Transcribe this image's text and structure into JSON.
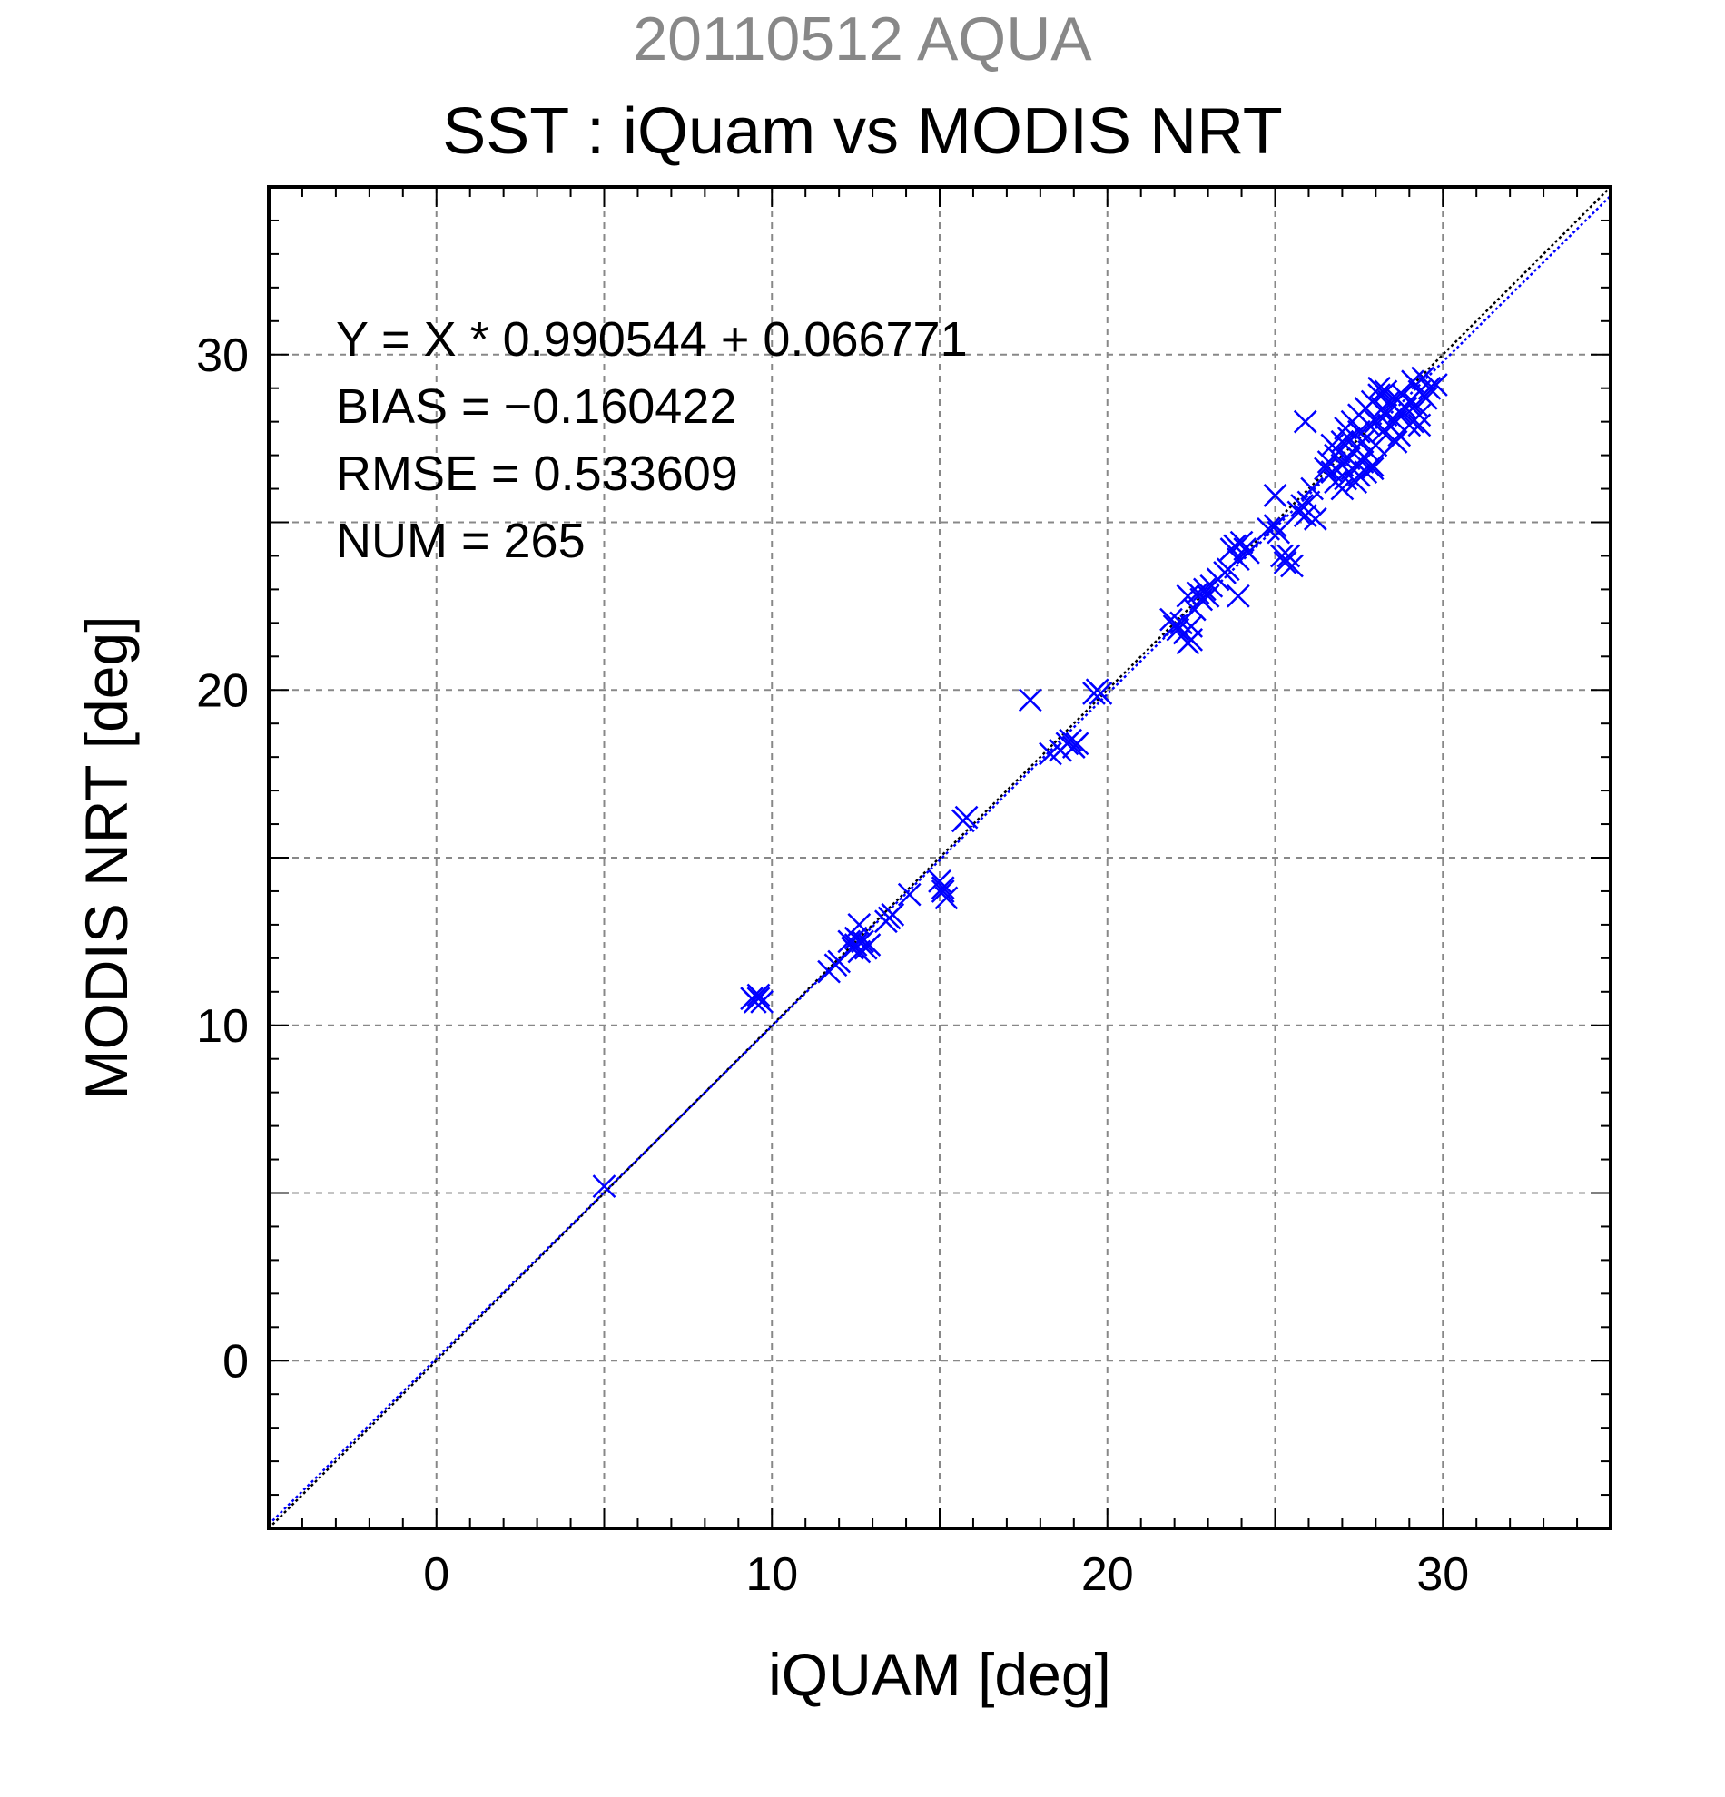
{
  "chart_data": {
    "type": "scatter",
    "title": "SST : iQuam vs MODIS NRT",
    "subtitle": "20110512 AQUA",
    "xlabel": "iQUAM [deg]",
    "ylabel": "MODIS NRT [deg]",
    "xlim": [
      -5,
      35
    ],
    "ylim": [
      -5,
      35
    ],
    "xticks": [
      0,
      10,
      20,
      30
    ],
    "yticks": [
      0,
      10,
      20,
      30
    ],
    "grid": true,
    "marker": "x",
    "colors": {
      "points": "#0000ff",
      "fit_line": "#0000ff",
      "identity_line": "#000000",
      "grid": "#888888"
    },
    "annotations": [
      "Y = X * 0.990544 + 0.066771",
      "BIAS = −0.160422",
      "RMSE = 0.533609",
      "NUM = 265"
    ],
    "lines": [
      {
        "type": "identity",
        "slope": 1,
        "intercept": 0
      },
      {
        "type": "fit",
        "slope": 0.990544,
        "intercept": 0.066771
      }
    ],
    "series": [
      {
        "points": [
          [
            5.0,
            5.2
          ],
          [
            9.4,
            10.8
          ],
          [
            9.5,
            10.7
          ],
          [
            9.6,
            10.9
          ],
          [
            9.7,
            10.7
          ],
          [
            9.6,
            10.8
          ],
          [
            11.7,
            11.6
          ],
          [
            11.9,
            11.8
          ],
          [
            12.0,
            11.9
          ],
          [
            12.3,
            12.5
          ],
          [
            12.4,
            12.3
          ],
          [
            12.5,
            12.4
          ],
          [
            12.6,
            12.2
          ],
          [
            12.7,
            12.5
          ],
          [
            12.8,
            12.3
          ],
          [
            12.6,
            13.0
          ],
          [
            12.5,
            12.6
          ],
          [
            12.9,
            12.4
          ],
          [
            13.4,
            13.1
          ],
          [
            13.5,
            13.2
          ],
          [
            13.6,
            13.3
          ],
          [
            14.1,
            13.9
          ],
          [
            15.0,
            14.3
          ],
          [
            15.1,
            14.0
          ],
          [
            15.2,
            13.8
          ],
          [
            15.1,
            14.1
          ],
          [
            15.7,
            16.1
          ],
          [
            15.8,
            16.2
          ],
          [
            17.7,
            19.7
          ],
          [
            18.3,
            18.1
          ],
          [
            18.6,
            18.2
          ],
          [
            18.8,
            18.4
          ],
          [
            18.9,
            18.5
          ],
          [
            19.0,
            18.3
          ],
          [
            19.1,
            18.4
          ],
          [
            19.6,
            19.9
          ],
          [
            19.7,
            20.0
          ],
          [
            19.8,
            19.9
          ],
          [
            21.9,
            22.1
          ],
          [
            22.0,
            21.9
          ],
          [
            22.1,
            21.8
          ],
          [
            22.2,
            22.0
          ],
          [
            22.3,
            21.7
          ],
          [
            22.4,
            21.4
          ],
          [
            22.5,
            21.5
          ],
          [
            22.4,
            22.8
          ],
          [
            22.6,
            22.4
          ],
          [
            22.7,
            22.9
          ],
          [
            22.8,
            22.7
          ],
          [
            22.9,
            23.0
          ],
          [
            23.0,
            22.8
          ],
          [
            23.1,
            23.1
          ],
          [
            22.5,
            21.9
          ],
          [
            23.3,
            23.3
          ],
          [
            23.5,
            23.5
          ],
          [
            23.6,
            23.6
          ],
          [
            23.7,
            24.2
          ],
          [
            23.8,
            24.3
          ],
          [
            23.9,
            23.9
          ],
          [
            24.0,
            24.4
          ],
          [
            24.1,
            24.2
          ],
          [
            24.2,
            24.1
          ],
          [
            23.9,
            22.8
          ],
          [
            24.8,
            24.8
          ],
          [
            25.0,
            24.9
          ],
          [
            25.1,
            24.7
          ],
          [
            25.0,
            25.8
          ],
          [
            25.2,
            24.0
          ],
          [
            25.3,
            23.8
          ],
          [
            25.4,
            24.0
          ],
          [
            25.5,
            23.7
          ],
          [
            25.7,
            25.3
          ],
          [
            25.8,
            25.5
          ],
          [
            25.9,
            25.2
          ],
          [
            26.0,
            25.6
          ],
          [
            26.1,
            26.0
          ],
          [
            26.2,
            25.1
          ],
          [
            25.9,
            28.0
          ],
          [
            26.5,
            26.6
          ],
          [
            26.6,
            26.8
          ],
          [
            26.7,
            26.5
          ],
          [
            26.8,
            26.2
          ],
          [
            26.9,
            27.1
          ],
          [
            26.7,
            27.3
          ],
          [
            26.8,
            27.0
          ],
          [
            27.0,
            26.7
          ],
          [
            27.0,
            27.4
          ],
          [
            27.1,
            26.3
          ],
          [
            27.1,
            27.8
          ],
          [
            27.2,
            26.9
          ],
          [
            27.2,
            27.5
          ],
          [
            27.3,
            26.6
          ],
          [
            27.3,
            28.0
          ],
          [
            27.4,
            27.2
          ],
          [
            27.4,
            26.2
          ],
          [
            27.5,
            27.7
          ],
          [
            27.5,
            28.2
          ],
          [
            27.6,
            26.8
          ],
          [
            27.6,
            27.4
          ],
          [
            27.7,
            26.5
          ],
          [
            27.7,
            28.4
          ],
          [
            27.8,
            27.1
          ],
          [
            27.8,
            27.9
          ],
          [
            27.9,
            28.6
          ],
          [
            27.9,
            26.7
          ],
          [
            28.0,
            28.0
          ],
          [
            28.0,
            27.3
          ],
          [
            28.1,
            28.8
          ],
          [
            28.1,
            29.0
          ],
          [
            28.2,
            28.4
          ],
          [
            28.2,
            27.7
          ],
          [
            28.3,
            28.9
          ],
          [
            28.3,
            28.2
          ],
          [
            28.4,
            28.6
          ],
          [
            28.4,
            27.9
          ],
          [
            28.5,
            28.5
          ],
          [
            28.6,
            28.7
          ],
          [
            28.6,
            28.0
          ],
          [
            28.7,
            28.3
          ],
          [
            28.7,
            27.6
          ],
          [
            28.8,
            28.8
          ],
          [
            28.9,
            28.4
          ],
          [
            29.0,
            28.6
          ],
          [
            29.0,
            27.9
          ],
          [
            29.1,
            29.2
          ],
          [
            29.2,
            28.5
          ],
          [
            29.3,
            28.9
          ],
          [
            29.3,
            28.2
          ],
          [
            29.4,
            29.3
          ],
          [
            29.5,
            28.7
          ],
          [
            29.6,
            29.0
          ],
          [
            29.8,
            29.1
          ],
          [
            29.3,
            27.9
          ],
          [
            27.0,
            26.0
          ],
          [
            27.5,
            26.4
          ],
          [
            27.9,
            26.6
          ],
          [
            28.6,
            27.4
          ],
          [
            29.1,
            28.0
          ]
        ]
      }
    ]
  }
}
